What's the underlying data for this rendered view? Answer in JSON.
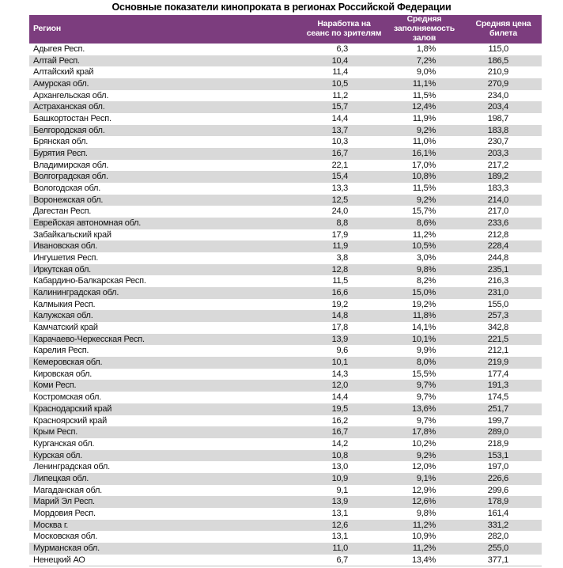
{
  "title": "Основные показатели кинопроката в регионах Российской Федерации",
  "colors": {
    "header_bg": "#7C3D7E",
    "alt_row_bg": "#D9D9D9",
    "header_text": "#FFFFFF"
  },
  "table": {
    "columns": [
      "Регион",
      "Наработка на сеанс по зрителям",
      "Средняя заполняемость залов",
      "Средняя цена билета"
    ],
    "rows": [
      [
        "Адыгея Респ.",
        "6,3",
        "1,8%",
        "115,0"
      ],
      [
        "Алтай Респ.",
        "10,4",
        "7,2%",
        "186,5"
      ],
      [
        "Алтайский край",
        "11,4",
        "9,0%",
        "210,9"
      ],
      [
        "Амурская обл.",
        "10,5",
        "11,1%",
        "270,9"
      ],
      [
        "Архангельская обл.",
        "11,2",
        "11,5%",
        "234,0"
      ],
      [
        "Астраханская обл.",
        "15,7",
        "12,4%",
        "203,4"
      ],
      [
        "Башкортостан Респ.",
        "14,4",
        "11,9%",
        "198,7"
      ],
      [
        "Белгородская обл.",
        "13,7",
        "9,2%",
        "183,8"
      ],
      [
        "Брянская обл.",
        "10,3",
        "11,0%",
        "230,7"
      ],
      [
        "Бурятия Респ.",
        "16,7",
        "16,1%",
        "203,3"
      ],
      [
        "Владимирская обл.",
        "22,1",
        "17,0%",
        "217,2"
      ],
      [
        "Волгоградская обл.",
        "15,4",
        "10,8%",
        "189,2"
      ],
      [
        "Вологодская обл.",
        "13,3",
        "11,5%",
        "183,3"
      ],
      [
        "Воронежская обл.",
        "12,5",
        "9,2%",
        "214,0"
      ],
      [
        "Дагестан Респ.",
        "24,0",
        "15,7%",
        "217,0"
      ],
      [
        "Еврейская автономная обл.",
        "8,8",
        "8,6%",
        "233,6"
      ],
      [
        "Забайкальский край",
        "17,9",
        "11,2%",
        "212,8"
      ],
      [
        "Ивановская обл.",
        "11,9",
        "10,5%",
        "228,4"
      ],
      [
        "Ингушетия Респ.",
        "3,8",
        "3,0%",
        "244,8"
      ],
      [
        "Иркутская обл.",
        "12,8",
        "9,8%",
        "235,1"
      ],
      [
        "Кабардино-Балкарская Респ.",
        "11,5",
        "8,2%",
        "216,3"
      ],
      [
        "Калининградская обл.",
        "16,6",
        "15,0%",
        "231,0"
      ],
      [
        "Калмыкия Респ.",
        "19,2",
        "19,2%",
        "155,0"
      ],
      [
        "Калужская обл.",
        "14,8",
        "11,8%",
        "257,3"
      ],
      [
        "Камчатский край",
        "17,8",
        "14,1%",
        "342,8"
      ],
      [
        "Карачаево-Черкесская Респ.",
        "13,9",
        "10,1%",
        "221,5"
      ],
      [
        "Карелия Респ.",
        "9,6",
        "9,9%",
        "212,1"
      ],
      [
        "Кемеровская обл.",
        "10,1",
        "8,0%",
        "219,9"
      ],
      [
        "Кировская обл.",
        "14,3",
        "15,5%",
        "177,4"
      ],
      [
        "Коми Респ.",
        "12,0",
        "9,7%",
        "191,3"
      ],
      [
        "Костромская обл.",
        "14,4",
        "9,7%",
        "174,5"
      ],
      [
        "Краснодарский край",
        "19,5",
        "13,6%",
        "251,7"
      ],
      [
        "Красноярский край",
        "16,2",
        "9,7%",
        "199,7"
      ],
      [
        "Крым Респ.",
        "16,7",
        "17,8%",
        "289,0"
      ],
      [
        "Курганская обл.",
        "14,2",
        "10,2%",
        "218,9"
      ],
      [
        "Курская обл.",
        "10,8",
        "9,2%",
        "153,1"
      ],
      [
        "Ленинградская обл.",
        "13,0",
        "12,0%",
        "197,0"
      ],
      [
        "Липецкая обл.",
        "10,9",
        "9,1%",
        "226,6"
      ],
      [
        "Магаданская обл.",
        "9,1",
        "12,9%",
        "299,6"
      ],
      [
        "Марий Эл Респ.",
        "13,9",
        "12,6%",
        "178,9"
      ],
      [
        "Мордовия Респ.",
        "13,1",
        "9,8%",
        "161,4"
      ],
      [
        "Москва г.",
        "12,6",
        "11,2%",
        "331,2"
      ],
      [
        "Московская обл.",
        "13,1",
        "10,9%",
        "282,0"
      ],
      [
        "Мурманская обл.",
        "11,0",
        "11,2%",
        "255,0"
      ],
      [
        "Ненецкий АО",
        "6,7",
        "13,4%",
        "377,1"
      ]
    ]
  }
}
